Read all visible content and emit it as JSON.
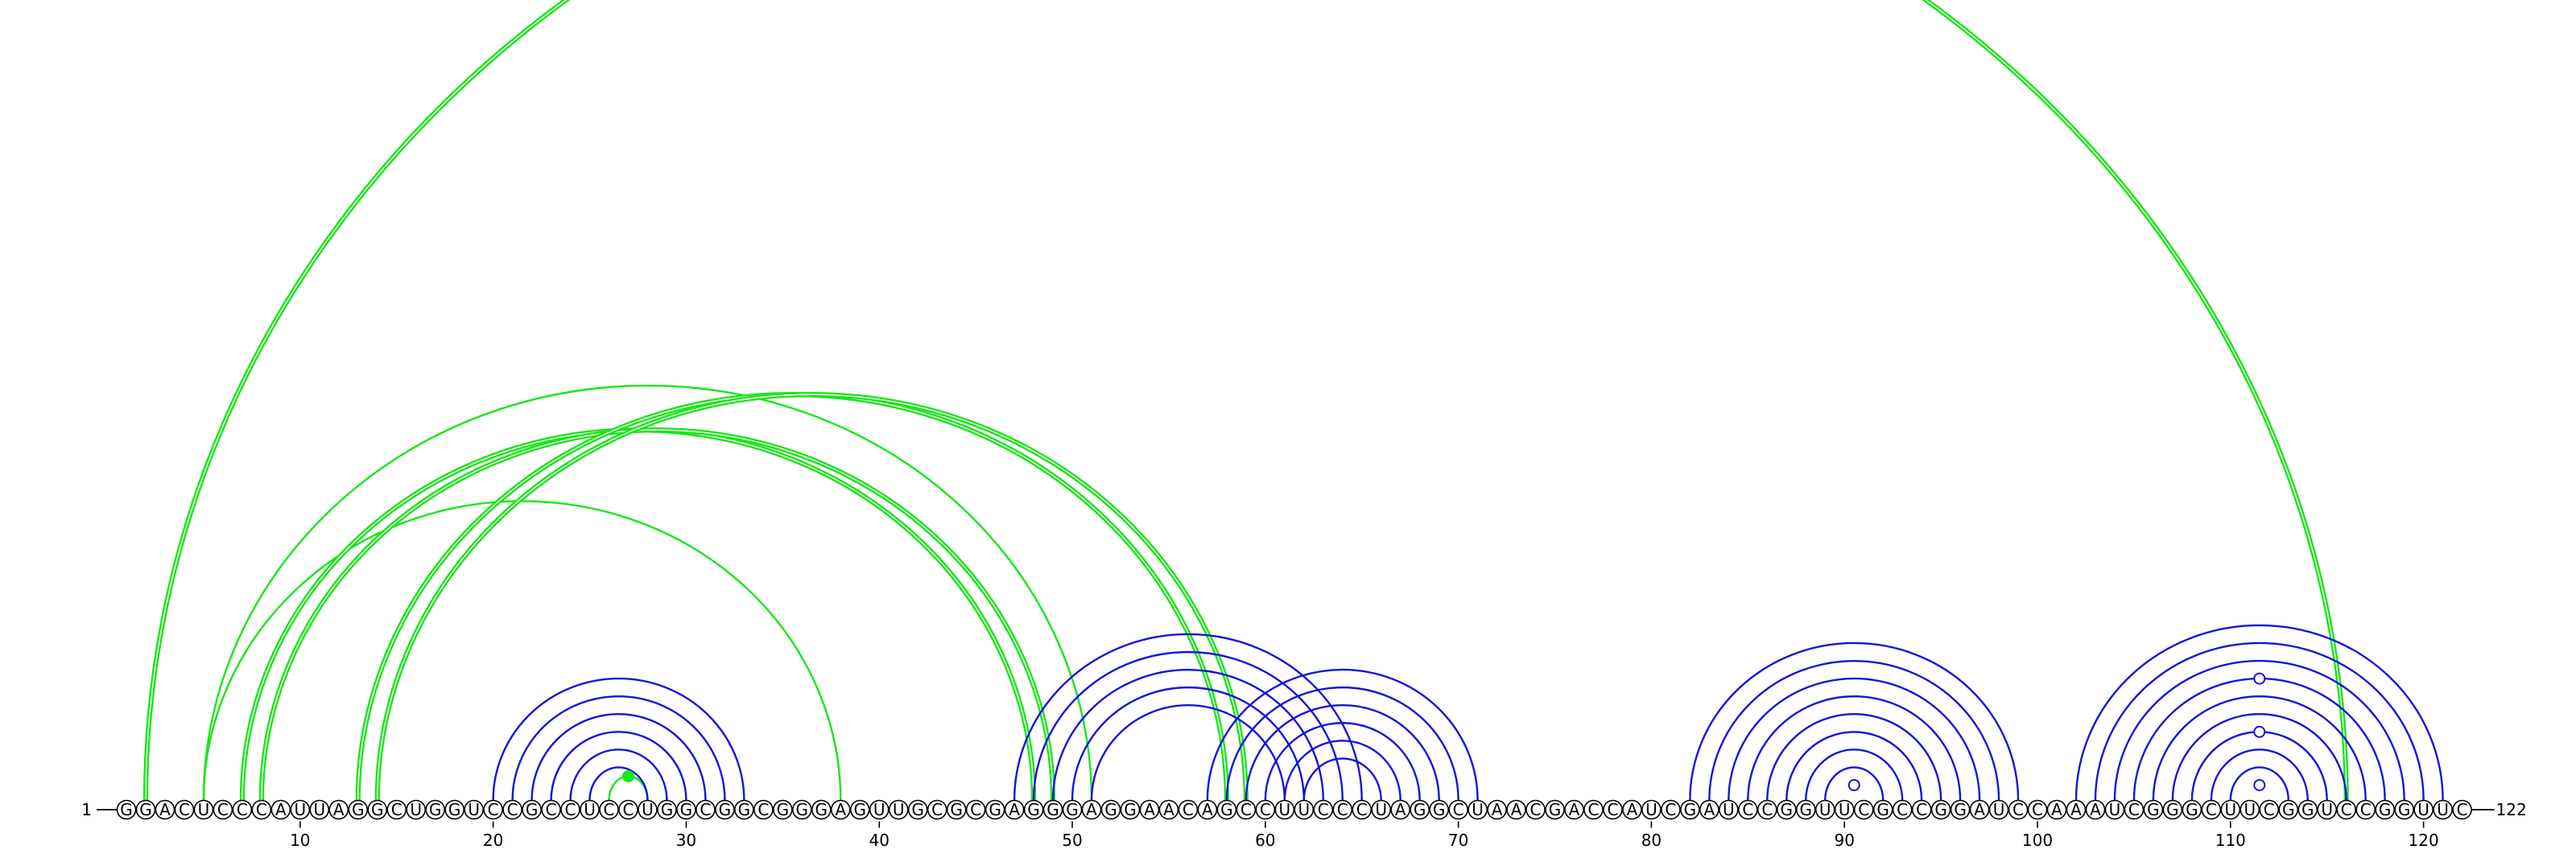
{
  "sequence": "GGACUCCCAUUAGGCUGGUCCGCCUCCUGGCGGCGGGAGUUGCGCGAGGGAGGAACAGCCUUCCCUAGGCUAACGACCAUCGAUCCGGUUCGCCGGAUCCAAAUCGGGCUUCGGUCCGGUUC",
  "start_label": "1",
  "end_label": "122",
  "tick_labels": [
    "10",
    "20",
    "30",
    "40",
    "50",
    "60",
    "70",
    "80",
    "90",
    "100",
    "110",
    "120"
  ],
  "colors": {
    "green": "#19e619",
    "blue": "#1414dc"
  },
  "arcs": [
    {
      "color": "green",
      "width": 3.2,
      "double": true,
      "from": 2,
      "to": 116
    },
    {
      "color": "green",
      "width": 2.4,
      "double": false,
      "from": 5,
      "to": 38
    },
    {
      "color": "green",
      "width": 2.4,
      "double": false,
      "from": 5,
      "to": 51
    },
    {
      "color": "green",
      "width": 3.2,
      "double": true,
      "from": 7,
      "to": 48
    },
    {
      "color": "green",
      "width": 3.2,
      "double": true,
      "from": 8,
      "to": 49
    },
    {
      "color": "green",
      "width": 3.2,
      "double": true,
      "from": 13,
      "to": 58
    },
    {
      "color": "green",
      "width": 3.2,
      "double": true,
      "from": 14,
      "to": 59
    },
    {
      "color": "green",
      "width": 2.4,
      "double": false,
      "from": 26,
      "to": 28
    },
    {
      "color": "blue",
      "width": 2.4,
      "from": 20,
      "to": 33
    },
    {
      "color": "blue",
      "width": 2.4,
      "from": 21,
      "to": 32
    },
    {
      "color": "blue",
      "width": 2.4,
      "from": 22,
      "to": 31
    },
    {
      "color": "blue",
      "width": 2.4,
      "from": 23,
      "to": 30
    },
    {
      "color": "blue",
      "width": 2.4,
      "from": 24,
      "to": 29
    },
    {
      "color": "blue",
      "width": 2.4,
      "from": 25,
      "to": 28
    },
    {
      "color": "blue",
      "width": 2.4,
      "from": 47,
      "to": 65
    },
    {
      "color": "blue",
      "width": 2.4,
      "from": 48,
      "to": 64
    },
    {
      "color": "blue",
      "width": 2.4,
      "from": 49,
      "to": 63
    },
    {
      "color": "blue",
      "width": 2.4,
      "from": 50,
      "to": 62
    },
    {
      "color": "blue",
      "width": 2.4,
      "from": 51,
      "to": 61
    },
    {
      "color": "blue",
      "width": 2.4,
      "from": 57,
      "to": 71
    },
    {
      "color": "blue",
      "width": 2.4,
      "from": 58,
      "to": 70
    },
    {
      "color": "blue",
      "width": 2.4,
      "from": 59,
      "to": 69
    },
    {
      "color": "blue",
      "width": 2.4,
      "from": 60,
      "to": 68
    },
    {
      "color": "blue",
      "width": 2.4,
      "from": 61,
      "to": 67
    },
    {
      "color": "blue",
      "width": 2.4,
      "from": 62,
      "to": 66
    },
    {
      "color": "blue",
      "width": 2.4,
      "from": 82,
      "to": 99
    },
    {
      "color": "blue",
      "width": 2.4,
      "from": 83,
      "to": 98
    },
    {
      "color": "blue",
      "width": 2.4,
      "from": 84,
      "to": 97
    },
    {
      "color": "blue",
      "width": 2.4,
      "from": 85,
      "to": 96
    },
    {
      "color": "blue",
      "width": 2.4,
      "from": 86,
      "to": 95
    },
    {
      "color": "blue",
      "width": 2.4,
      "from": 87,
      "to": 94
    },
    {
      "color": "blue",
      "width": 2.4,
      "from": 88,
      "to": 93
    },
    {
      "color": "blue",
      "width": 2.4,
      "from": 89,
      "to": 92
    },
    {
      "color": "blue",
      "width": 2.4,
      "from": 102,
      "to": 121
    },
    {
      "color": "blue",
      "width": 2.4,
      "from": 103,
      "to": 120
    },
    {
      "color": "blue",
      "width": 2.4,
      "from": 104,
      "to": 119
    },
    {
      "color": "blue",
      "width": 2.4,
      "from": 105,
      "to": 118
    },
    {
      "color": "blue",
      "width": 2.4,
      "from": 106,
      "to": 117
    },
    {
      "color": "blue",
      "width": 2.4,
      "from": 107,
      "to": 116
    },
    {
      "color": "blue",
      "width": 2.4,
      "from": 108,
      "to": 115
    },
    {
      "color": "blue",
      "width": 2.4,
      "from": 109,
      "to": 114
    },
    {
      "color": "blue",
      "width": 2.4,
      "from": 110,
      "to": 113
    }
  ],
  "markers": [
    {
      "color": "green",
      "filled": true,
      "between": [
        26,
        28
      ]
    },
    {
      "color": "blue",
      "filled": false,
      "between": [
        90,
        91
      ]
    },
    {
      "color": "blue",
      "filled": false,
      "between": [
        111,
        112
      ]
    },
    {
      "color": "blue",
      "filled": false,
      "between": [
        108,
        115
      ]
    },
    {
      "color": "blue",
      "filled": false,
      "between": [
        105,
        118
      ]
    }
  ]
}
